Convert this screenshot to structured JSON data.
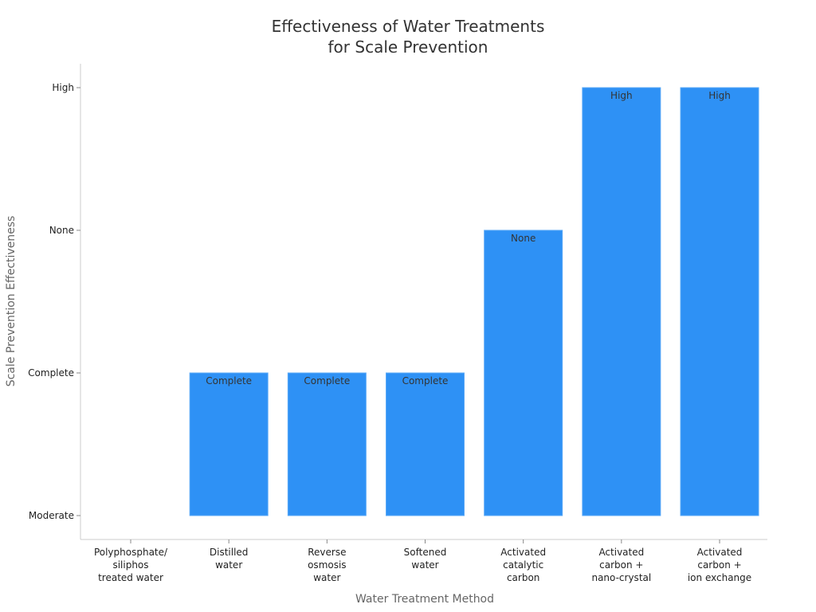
{
  "chart_data": {
    "type": "bar",
    "title": [
      "Effectiveness of Water Treatments",
      "for Scale Prevention"
    ],
    "xlabel": "Water Treatment Method",
    "ylabel": "Scale Prevention Effectiveness",
    "y_ticks": [
      "Moderate",
      "Complete",
      "None",
      "High"
    ],
    "categories": [
      [
        "Polyphosphate/",
        "siliphos",
        "treated water"
      ],
      [
        "Distilled",
        "water"
      ],
      [
        "Reverse",
        "osmosis",
        "water"
      ],
      [
        "Softened",
        "water"
      ],
      [
        "Activated",
        "catalytic",
        "carbon"
      ],
      [
        "Activated",
        "carbon +",
        "nano-crystal"
      ],
      [
        "Activated",
        "carbon +",
        "ion exchange"
      ]
    ],
    "values": [
      0,
      1,
      1,
      1,
      2,
      3,
      3
    ],
    "data_labels": [
      "",
      "Complete",
      "Complete",
      "Complete",
      "None",
      "High",
      "High"
    ],
    "ylim": [
      0,
      3
    ],
    "bar_color": "#2e91f5",
    "grid": false,
    "legend": "none"
  }
}
